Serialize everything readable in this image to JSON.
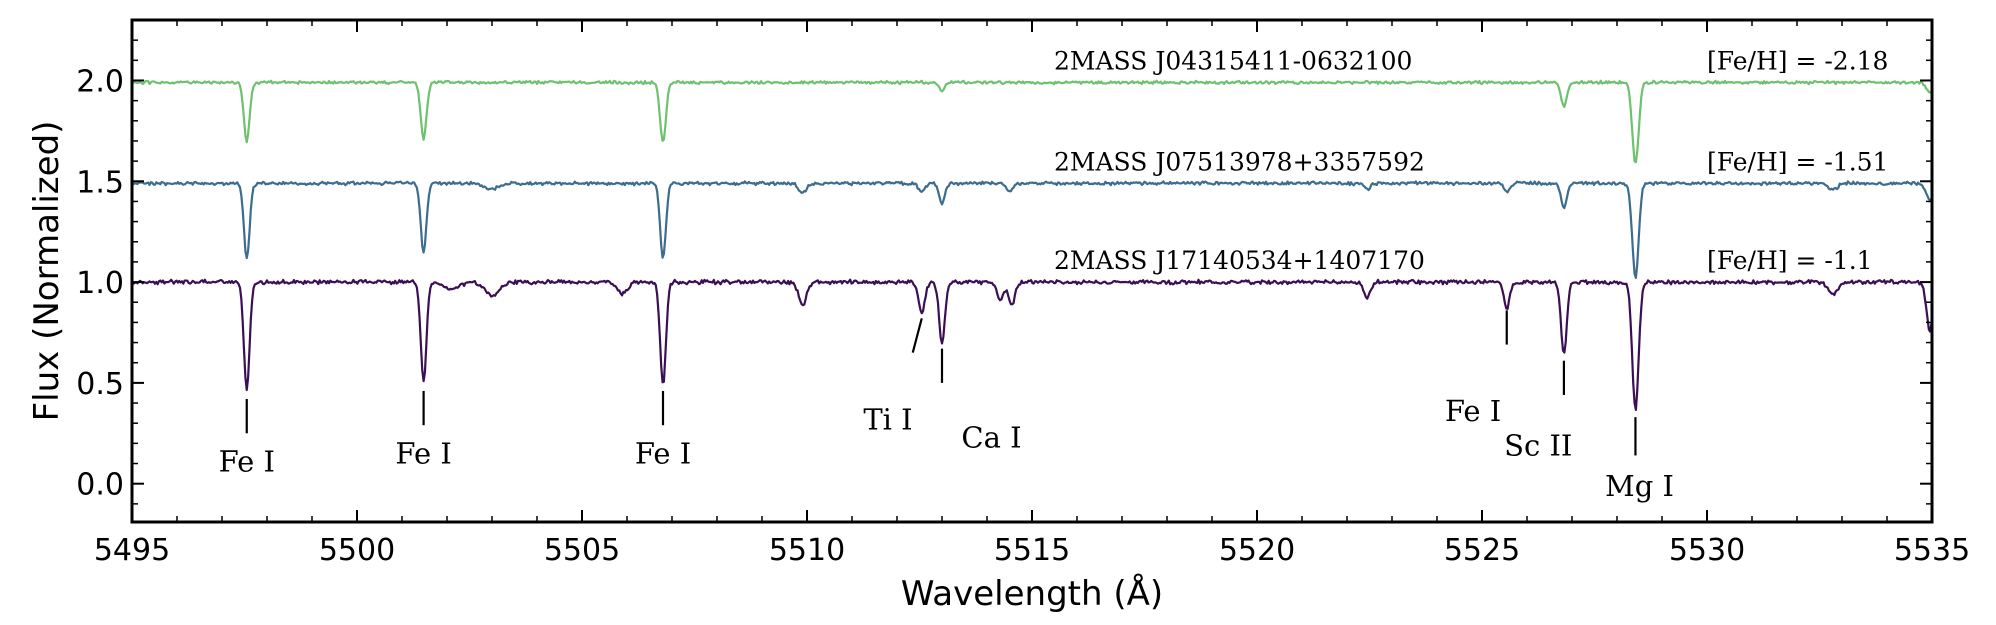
{
  "chart_data": {
    "type": "line",
    "xlabel": "Wavelength (Å)",
    "ylabel": "Flux (Normalized)",
    "xlim": [
      5495,
      5535
    ],
    "ylim": [
      -0.19,
      2.3
    ],
    "x_ticks": [
      5495,
      5500,
      5505,
      5510,
      5515,
      5520,
      5525,
      5530,
      5535
    ],
    "x_tick_labels": [
      "5495",
      "5500",
      "5505",
      "5510",
      "5515",
      "5520",
      "5525",
      "5530",
      "5535"
    ],
    "y_ticks": [
      0.0,
      0.5,
      1.0,
      1.5,
      2.0
    ],
    "y_tick_labels": [
      "0.0",
      "0.5",
      "1.0",
      "1.5",
      "2.0"
    ],
    "grid": false,
    "series": [
      {
        "name": "2MASS J17140534+1407170",
        "metallicity_label": "[Fe/H] = -1.1",
        "color": "#3b0f55",
        "continuum": 1.0,
        "noise": 0.012,
        "lines": [
          {
            "x": 5497.55,
            "depth": 0.53,
            "width": 0.09
          },
          {
            "x": 5501.48,
            "depth": 0.49,
            "width": 0.09
          },
          {
            "x": 5502.1,
            "depth": 0.03,
            "width": 0.25
          },
          {
            "x": 5503.0,
            "depth": 0.07,
            "width": 0.22
          },
          {
            "x": 5505.9,
            "depth": 0.06,
            "width": 0.15
          },
          {
            "x": 5506.8,
            "depth": 0.51,
            "width": 0.09
          },
          {
            "x": 5509.9,
            "depth": 0.12,
            "width": 0.12
          },
          {
            "x": 5512.55,
            "depth": 0.15,
            "width": 0.1
          },
          {
            "x": 5513.0,
            "depth": 0.3,
            "width": 0.09
          },
          {
            "x": 5514.3,
            "depth": 0.09,
            "width": 0.1
          },
          {
            "x": 5514.55,
            "depth": 0.11,
            "width": 0.1
          },
          {
            "x": 5522.45,
            "depth": 0.08,
            "width": 0.1
          },
          {
            "x": 5525.55,
            "depth": 0.13,
            "width": 0.09
          },
          {
            "x": 5526.82,
            "depth": 0.36,
            "width": 0.09
          },
          {
            "x": 5528.41,
            "depth": 0.63,
            "width": 0.1
          },
          {
            "x": 5532.8,
            "depth": 0.06,
            "width": 0.15
          },
          {
            "x": 5534.95,
            "depth": 0.24,
            "width": 0.1
          }
        ]
      },
      {
        "name": "2MASS J07513978+3357592",
        "metallicity_label": "[Fe/H] = -1.51",
        "color": "#3c6c8e",
        "continuum": 1.49,
        "noise": 0.01,
        "lines": [
          {
            "x": 5497.55,
            "depth": 0.37,
            "width": 0.09
          },
          {
            "x": 5501.48,
            "depth": 0.34,
            "width": 0.09
          },
          {
            "x": 5503.0,
            "depth": 0.03,
            "width": 0.2
          },
          {
            "x": 5506.8,
            "depth": 0.37,
            "width": 0.09
          },
          {
            "x": 5509.9,
            "depth": 0.05,
            "width": 0.12
          },
          {
            "x": 5512.55,
            "depth": 0.04,
            "width": 0.1
          },
          {
            "x": 5513.0,
            "depth": 0.1,
            "width": 0.09
          },
          {
            "x": 5514.5,
            "depth": 0.04,
            "width": 0.1
          },
          {
            "x": 5522.45,
            "depth": 0.03,
            "width": 0.1
          },
          {
            "x": 5525.55,
            "depth": 0.04,
            "width": 0.09
          },
          {
            "x": 5526.82,
            "depth": 0.12,
            "width": 0.09
          },
          {
            "x": 5528.41,
            "depth": 0.47,
            "width": 0.1
          },
          {
            "x": 5532.8,
            "depth": 0.03,
            "width": 0.15
          },
          {
            "x": 5534.95,
            "depth": 0.08,
            "width": 0.12
          }
        ]
      },
      {
        "name": "2MASS J04315411-0632100",
        "metallicity_label": "[Fe/H] = -2.18",
        "color": "#6cc26e",
        "continuum": 1.99,
        "noise": 0.009,
        "lines": [
          {
            "x": 5497.55,
            "depth": 0.29,
            "width": 0.09
          },
          {
            "x": 5501.48,
            "depth": 0.28,
            "width": 0.09
          },
          {
            "x": 5506.8,
            "depth": 0.3,
            "width": 0.09
          },
          {
            "x": 5513.0,
            "depth": 0.04,
            "width": 0.09
          },
          {
            "x": 5526.82,
            "depth": 0.12,
            "width": 0.09
          },
          {
            "x": 5528.41,
            "depth": 0.4,
            "width": 0.1
          },
          {
            "x": 5534.95,
            "depth": 0.05,
            "width": 0.1
          }
        ]
      }
    ],
    "annotations": [
      {
        "text": "Fe I",
        "x": 5497.55,
        "y_tip": 0.42,
        "y_base": 0.25,
        "label_x": 5497.55,
        "label_y": 0.06,
        "anchor": "middle"
      },
      {
        "text": "Fe I",
        "x": 5501.48,
        "y_tip": 0.46,
        "y_base": 0.29,
        "label_x": 5501.48,
        "label_y": 0.1,
        "anchor": "middle"
      },
      {
        "text": "Fe I",
        "x": 5506.8,
        "y_tip": 0.46,
        "y_base": 0.29,
        "label_x": 5506.8,
        "label_y": 0.1,
        "anchor": "middle"
      },
      {
        "text": "Ti I",
        "x": 5512.55,
        "y_tip": 0.82,
        "y_base": 0.65,
        "x_base": 5512.35,
        "label_x": 5511.8,
        "label_y": 0.27,
        "anchor": "middle"
      },
      {
        "text": "Ca I",
        "x": 5513.0,
        "y_tip": 0.67,
        "y_base": 0.5,
        "label_x": 5514.1,
        "label_y": 0.18,
        "anchor": "middle"
      },
      {
        "text": "Fe I",
        "x": 5525.55,
        "y_tip": 0.86,
        "y_base": 0.69,
        "label_x": 5524.8,
        "label_y": 0.31,
        "anchor": "middle"
      },
      {
        "text": "Sc II",
        "x": 5526.82,
        "y_tip": 0.61,
        "y_base": 0.44,
        "label_x": 5526.25,
        "label_y": 0.14,
        "anchor": "middle"
      },
      {
        "text": "Mg I",
        "x": 5528.41,
        "y_tip": 0.33,
        "y_base": 0.14,
        "label_x": 5528.5,
        "label_y": -0.06,
        "anchor": "middle"
      }
    ]
  }
}
